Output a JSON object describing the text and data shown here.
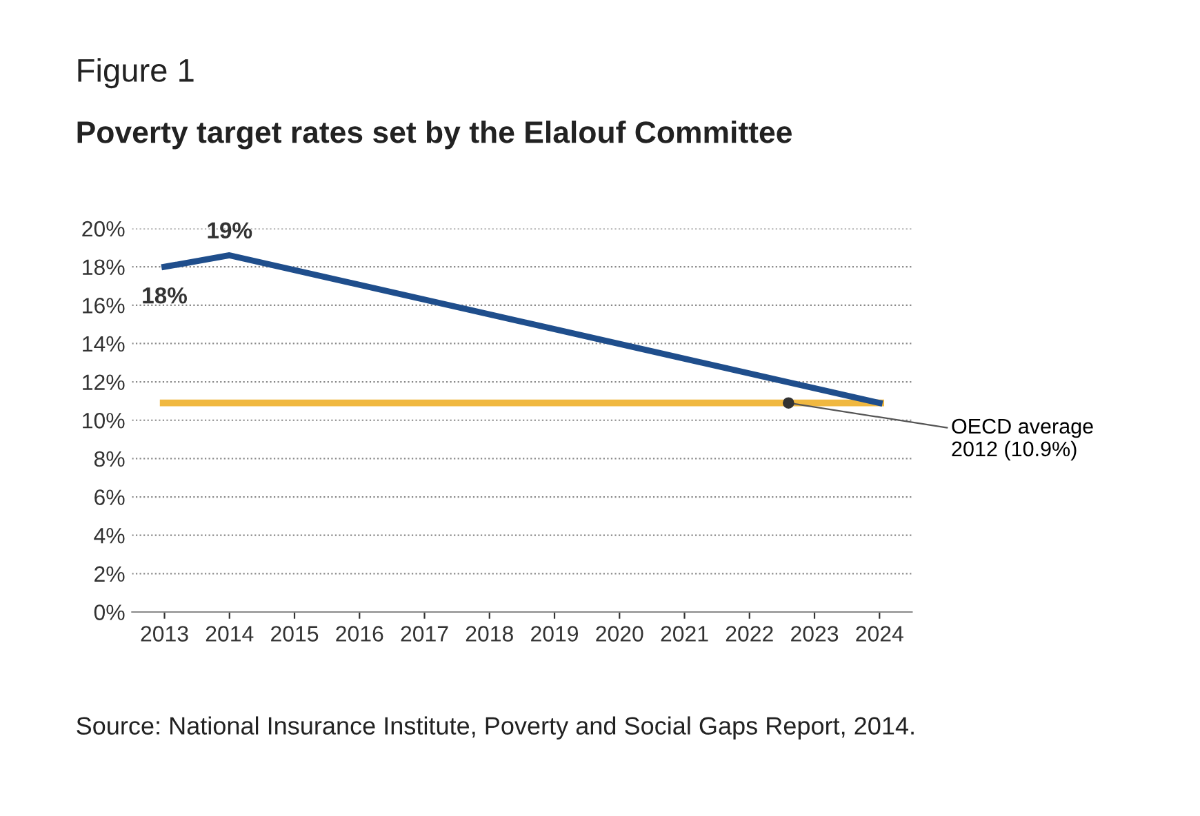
{
  "chart_data": {
    "type": "line",
    "title": "Figure 1",
    "subtitle": "Poverty target rates set by the Elalouf Committee",
    "x": [
      2013,
      2014,
      2024
    ],
    "series": [
      {
        "color": "#1f4e8c",
        "values": [
          18,
          18.6,
          10.9
        ],
        "value_labels": [
          "18%",
          "19%",
          null
        ]
      }
    ],
    "ref_lines": [
      {
        "axis": "y",
        "value": 10.9,
        "color": "#f0b840"
      }
    ],
    "annotations": [
      {
        "text": "OECD average\n2012 (10.9%)",
        "x": 2022.6,
        "y": 10.9
      },
      "Source: National Insurance Institute, Poverty and Social Gaps Report, 2014."
    ],
    "xlim": [
      2012.5,
      2024.5
    ],
    "xticks": [
      2013,
      2014,
      2015,
      2016,
      2017,
      2018,
      2019,
      2020,
      2021,
      2022,
      2023,
      2024
    ],
    "ylim": [
      0,
      20
    ],
    "yticks": [
      {
        "value": 0,
        "label": "0%"
      },
      {
        "value": 2,
        "label": "2%"
      },
      {
        "value": 4,
        "label": "4%"
      },
      {
        "value": 6,
        "label": "6%"
      },
      {
        "value": 8,
        "label": "8%"
      },
      {
        "value": 10,
        "label": "10%"
      },
      {
        "value": 12,
        "label": "12%"
      },
      {
        "value": 14,
        "label": "14%"
      },
      {
        "value": 16,
        "label": "16%"
      },
      {
        "value": 18,
        "label": "18%"
      },
      {
        "value": 20,
        "label": "20%"
      }
    ],
    "grid": "y",
    "legend": false,
    "line_style": "solid",
    "marker": "none"
  }
}
